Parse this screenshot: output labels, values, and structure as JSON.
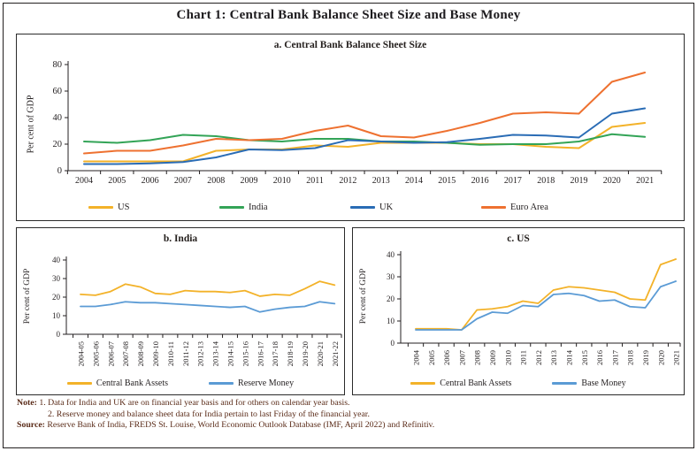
{
  "page": {
    "title": "Chart 1: Central Bank Balance Sheet Size and Base Money"
  },
  "colors": {
    "yellow": "#F3B229",
    "green": "#33A457",
    "dark_blue": "#2A6CB5",
    "orange": "#EE7130",
    "light_blue": "#5B9BD5",
    "axis": "#231F20"
  },
  "footer": {
    "note_label": "Note:",
    "notes": [
      "1.  Data for India and UK are on financial year basis and for others on calendar year basis.",
      "2.  Reserve money and balance sheet data for India pertain to last Friday of the financial year."
    ],
    "source_label": "Source:",
    "source": "Reserve Bank of India, FREDS St. Louise, World Economic Outlook Database (IMF, April 2022) and Refinitiv."
  },
  "chart_data": [
    {
      "id": "balance_sheet",
      "type": "line",
      "title": "a. Central Bank Balance Sheet Size",
      "ylabel": "Per cent of GDP",
      "ylim": [
        0,
        80
      ],
      "yticks": [
        0,
        20,
        40,
        60,
        80
      ],
      "grid": false,
      "legend_position": "bottom",
      "categories": [
        "2004",
        "2005",
        "2006",
        "2007",
        "2008",
        "2009",
        "2010",
        "2011",
        "2012",
        "2013",
        "2014",
        "2015",
        "2016",
        "2017",
        "2018",
        "2019",
        "2020",
        "2021"
      ],
      "series": [
        {
          "name": "US",
          "color": "#F3B229",
          "values": [
            7,
            7,
            7,
            7,
            15,
            16,
            16,
            19,
            18,
            21,
            21,
            21,
            20,
            20,
            18,
            17,
            33,
            36
          ]
        },
        {
          "name": "India",
          "color": "#33A457",
          "values": [
            22,
            21,
            23,
            27,
            26,
            23,
            22,
            24,
            24,
            22,
            22,
            21,
            19.5,
            20,
            20,
            22,
            27.5,
            25.5
          ]
        },
        {
          "name": "UK",
          "color": "#2A6CB5",
          "values": [
            5,
            5,
            5.5,
            6.5,
            10,
            16,
            15.5,
            17,
            23,
            22,
            21,
            21.5,
            24,
            27,
            26.5,
            25,
            43,
            47
          ]
        },
        {
          "name": "Euro Area",
          "color": "#EE7130",
          "values": [
            13,
            15,
            15,
            19,
            24,
            23,
            24,
            30,
            34,
            26,
            25,
            30,
            36,
            43,
            44,
            43,
            67,
            74
          ]
        }
      ]
    },
    {
      "id": "india",
      "type": "line",
      "title": "b. India",
      "ylabel": "Per cent of GDP",
      "ylim": [
        0,
        40
      ],
      "yticks": [
        0,
        10,
        20,
        30,
        40
      ],
      "grid": false,
      "legend_position": "bottom",
      "categories": [
        "2004-05",
        "2005-06",
        "2006-07",
        "2007-08",
        "2008-09",
        "2009-10",
        "2010-11",
        "2011-12",
        "2012-13",
        "2013-14",
        "2014-15",
        "2015-16",
        "2016-17",
        "2017-18",
        "2018-19",
        "2019-20",
        "2020-21",
        "2021-22"
      ],
      "series": [
        {
          "name": "Central Bank Assets",
          "color": "#F3B229",
          "values": [
            21.5,
            21,
            23,
            27,
            25.5,
            22,
            21.5,
            23.5,
            23,
            23,
            22.5,
            23.5,
            20.5,
            21.5,
            21,
            24.5,
            28.5,
            26.5
          ]
        },
        {
          "name": "Reserve Money",
          "color": "#5B9BD5",
          "values": [
            15,
            15,
            16,
            17.5,
            17,
            17,
            16.5,
            16,
            15.5,
            15,
            14.5,
            15,
            12,
            13.5,
            14.5,
            15,
            17.5,
            16.5
          ]
        }
      ]
    },
    {
      "id": "us",
      "type": "line",
      "title": "c. US",
      "ylabel": "Per cent of GDP",
      "ylim": [
        0,
        40
      ],
      "yticks": [
        0,
        10,
        20,
        30,
        40
      ],
      "grid": false,
      "legend_position": "bottom",
      "categories": [
        "2004",
        "2005",
        "2006",
        "2007",
        "2008",
        "2009",
        "2010",
        "2011",
        "2012",
        "2013",
        "2014",
        "2015",
        "2016",
        "2017",
        "2018",
        "2019",
        "2020",
        "2021"
      ],
      "series": [
        {
          "name": "Central Bank Assets",
          "color": "#F3B229",
          "values": [
            6.5,
            6.5,
            6.5,
            6,
            15,
            15.5,
            16.5,
            19,
            18,
            24,
            25.5,
            25,
            24,
            23,
            20,
            19.5,
            35.5,
            38
          ]
        },
        {
          "name": "Base Money",
          "color": "#5B9BD5",
          "values": [
            6,
            6,
            6,
            6,
            11,
            14,
            13.5,
            17,
            16.5,
            22,
            22.5,
            21.5,
            19,
            19.5,
            16.5,
            16,
            25.5,
            28
          ]
        }
      ]
    }
  ]
}
